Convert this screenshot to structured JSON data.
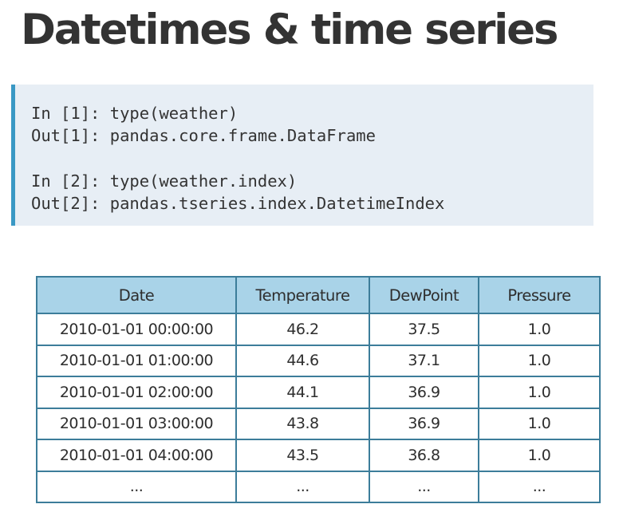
{
  "title": "Datetimes & time series",
  "code": [
    {
      "in": "In [1]: type(weather)",
      "out": "Out[1]: pandas.core.frame.DataFrame"
    },
    {
      "in": "In [2]: type(weather.index)",
      "out": "Out[2]: pandas.tseries.index.DatetimeIndex"
    }
  ],
  "table": {
    "headers": [
      "Date",
      "Temperature",
      "DewPoint",
      "Pressure"
    ],
    "rows": [
      [
        "2010-01-01 00:00:00",
        "46.2",
        "37.5",
        "1.0"
      ],
      [
        "2010-01-01 01:00:00",
        "44.6",
        "37.1",
        "1.0"
      ],
      [
        "2010-01-01 02:00:00",
        "44.1",
        "36.9",
        "1.0"
      ],
      [
        "2010-01-01 03:00:00",
        "43.8",
        "36.9",
        "1.0"
      ],
      [
        "2010-01-01 04:00:00",
        "43.5",
        "36.8",
        "1.0"
      ],
      [
        "...",
        "...",
        "...",
        "..."
      ]
    ]
  }
}
